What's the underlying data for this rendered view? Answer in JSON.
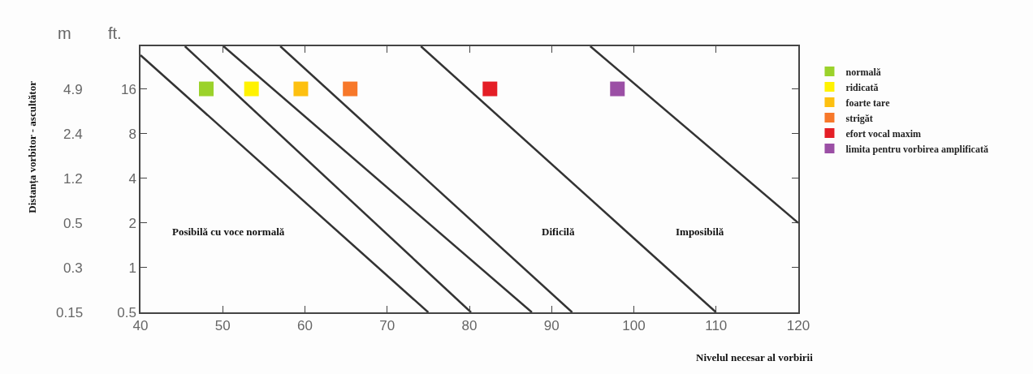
{
  "chart_data": {
    "type": "scatter",
    "xlabel": "Nivelul necesar al vorbirii",
    "xlim": [
      40,
      120
    ],
    "xticks": [
      40,
      50,
      60,
      70,
      80,
      90,
      100,
      110,
      120
    ],
    "ylim": [
      0.5,
      31
    ],
    "yticks": [
      0.5,
      1,
      2,
      4,
      8,
      16
    ],
    "log": "y",
    "grid": false,
    "legend": "right",
    "annotations": [
      "m",
      "ft.",
      "Posibilă cu voce normală",
      "Dificilă",
      "Imposibilă",
      "0.15",
      "0.3",
      "0.5",
      "1.2",
      "2.4",
      "4.9",
      "Distanța vorbitor - ascultător"
    ],
    "series": [
      {
        "type": "line",
        "color": "#333333",
        "x": [
          40,
          75
        ],
        "values": [
          27,
          0.5
        ]
      },
      {
        "type": "line",
        "color": "#333333",
        "x": [
          45.4,
          80.2
        ],
        "values": [
          31,
          0.5
        ]
      },
      {
        "type": "line",
        "color": "#333333",
        "x": [
          50.1,
          87.6
        ],
        "values": [
          31,
          0.5
        ]
      },
      {
        "type": "line",
        "color": "#333333",
        "x": [
          57,
          92.5
        ],
        "values": [
          31,
          0.5
        ]
      },
      {
        "type": "line",
        "color": "#333333",
        "x": [
          74.1,
          110
        ],
        "values": [
          31,
          0.5
        ]
      },
      {
        "type": "line",
        "color": "#333333",
        "x": [
          94.7,
          120
        ],
        "values": [
          31,
          2
        ]
      },
      {
        "name": "normală",
        "color": "#9bd22b",
        "marker": "square",
        "x": [
          48
        ],
        "values": [
          16
        ]
      },
      {
        "name": "ridicată",
        "color": "#fff200",
        "marker": "square",
        "x": [
          53.5
        ],
        "values": [
          16
        ]
      },
      {
        "name": "foarte tare",
        "color": "#fdc010",
        "marker": "square",
        "x": [
          59.5
        ],
        "values": [
          16
        ]
      },
      {
        "name": "strigăt",
        "color": "#f7782a",
        "marker": "square",
        "x": [
          65.5
        ],
        "values": [
          16
        ]
      },
      {
        "name": "efort vocal maxim",
        "color": "#e41e26",
        "marker": "square",
        "x": [
          82.5
        ],
        "values": [
          16
        ]
      },
      {
        "name": "limita pentru vorbirea amplificată",
        "color": "#9b4fa5",
        "marker": "square",
        "x": [
          98
        ],
        "values": [
          16
        ]
      }
    ]
  }
}
